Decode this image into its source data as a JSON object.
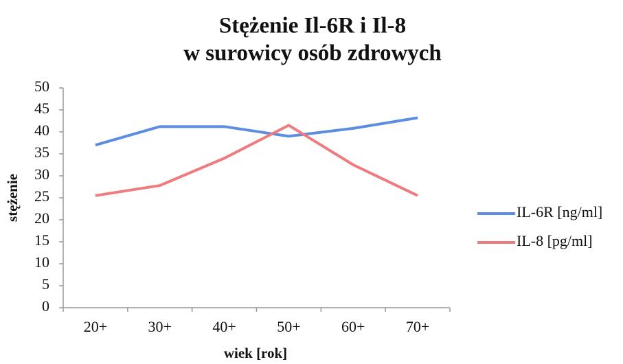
{
  "chart_data": {
    "type": "line",
    "title": "Stężenie Il-6R i Il-8",
    "subtitle": "w surowicy osób zdrowych",
    "x_label": "wiek [rok]",
    "y_label": "stężenie",
    "categories": [
      "20+",
      "30+",
      "40+",
      "50+",
      "60+",
      "70+"
    ],
    "series": [
      {
        "name": "IL-6R [ng/ml]",
        "color": "#5b8ee0",
        "values": [
          37,
          41.2,
          41.2,
          39,
          40.8,
          43.2
        ]
      },
      {
        "name": "IL-8 [pg/ml]",
        "color": "#ee7b7e",
        "values": [
          25.5,
          27.8,
          34,
          41.5,
          32.5,
          25.5
        ]
      }
    ],
    "ylim": [
      0,
      50
    ],
    "yticks": [
      0,
      5,
      10,
      15,
      20,
      25,
      30,
      35,
      40,
      45,
      50
    ],
    "grid": false,
    "legend": "right"
  }
}
